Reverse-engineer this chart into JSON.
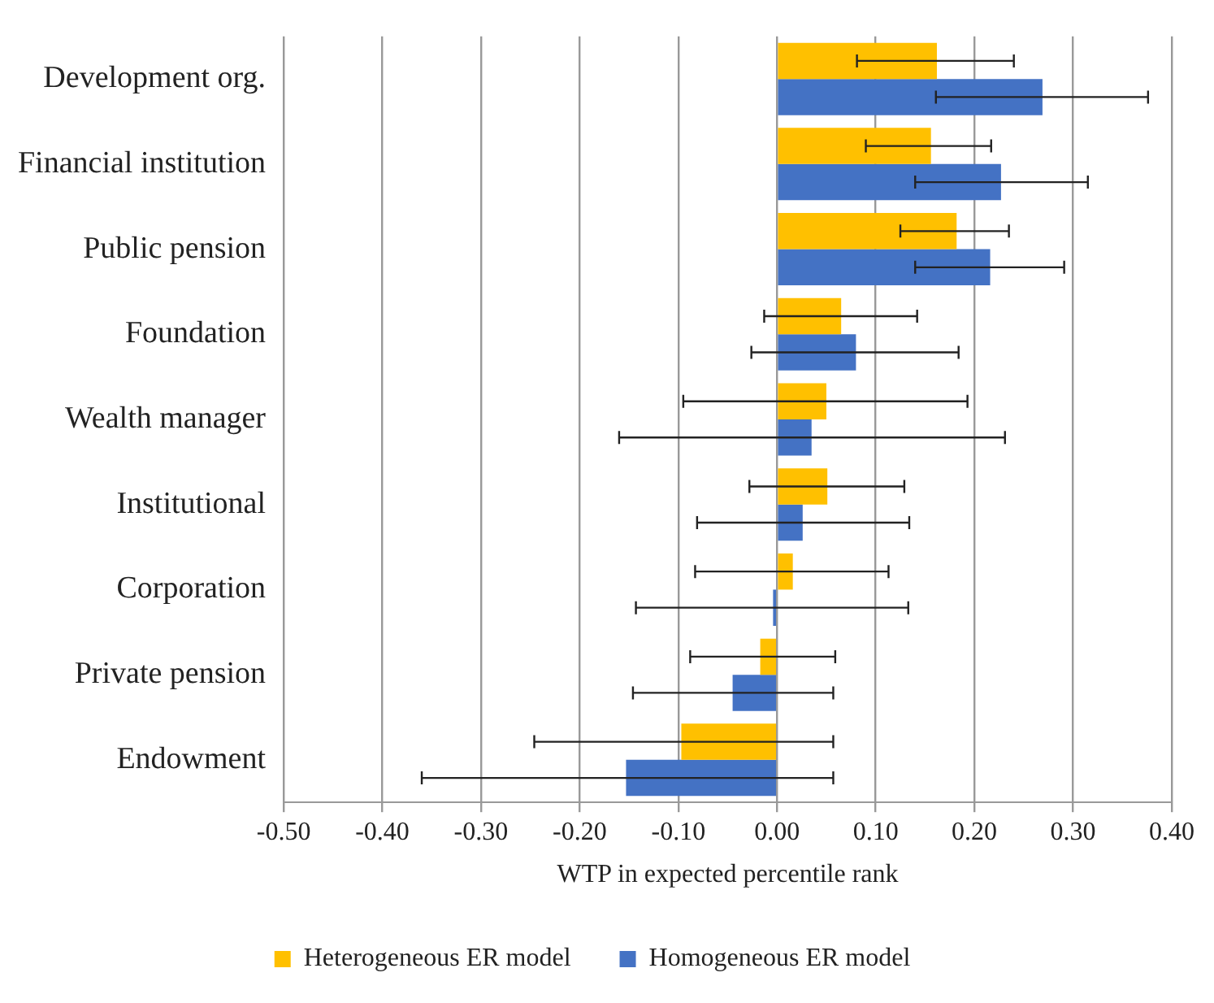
{
  "chart_data": {
    "type": "bar",
    "orientation": "horizontal",
    "xlabel": "WTP in expected percentile rank",
    "categories": [
      "Development org.",
      "Financial institution",
      "Public pension",
      "Foundation",
      "Wealth manager",
      "Institutional",
      "Corporation",
      "Private pension",
      "Endowment"
    ],
    "series": [
      {
        "name": "Heterogeneous ER model",
        "color": "#ffc000",
        "values": [
          0.162,
          0.156,
          0.182,
          0.065,
          0.05,
          0.051,
          0.016,
          -0.017,
          -0.097
        ],
        "errors": [
          [
            0.081,
            0.24
          ],
          [
            0.09,
            0.217
          ],
          [
            0.125,
            0.235
          ],
          [
            -0.013,
            0.142
          ],
          [
            -0.095,
            0.193
          ],
          [
            -0.028,
            0.129
          ],
          [
            -0.083,
            0.113
          ],
          [
            -0.088,
            0.059
          ],
          [
            -0.246,
            0.057
          ]
        ]
      },
      {
        "name": "Homogeneous ER model",
        "color": "#4472c4",
        "values": [
          0.269,
          0.227,
          0.216,
          0.08,
          0.035,
          0.026,
          -0.004,
          -0.045,
          -0.153
        ],
        "errors": [
          [
            0.161,
            0.376
          ],
          [
            0.14,
            0.315
          ],
          [
            0.14,
            0.291
          ],
          [
            -0.026,
            0.184
          ],
          [
            -0.16,
            0.231
          ],
          [
            -0.081,
            0.134
          ],
          [
            -0.143,
            0.133
          ],
          [
            -0.146,
            0.057
          ],
          [
            -0.36,
            0.057
          ]
        ]
      }
    ],
    "xlim": [
      -0.5,
      0.4
    ],
    "xticks": [
      {
        "value": -0.5,
        "label": "-0.50"
      },
      {
        "value": -0.4,
        "label": "-0.40"
      },
      {
        "value": -0.3,
        "label": "-0.30"
      },
      {
        "value": -0.2,
        "label": "-0.20"
      },
      {
        "value": -0.1,
        "label": "-0.10"
      },
      {
        "value": 0,
        "label": "0.00"
      },
      {
        "value": 0.1,
        "label": "0.10"
      },
      {
        "value": 0.2,
        "label": "0.20"
      },
      {
        "value": 0.3,
        "label": "0.30"
      },
      {
        "value": 0.4,
        "label": "0.40"
      }
    ],
    "grid": "x",
    "legend": "bottom"
  }
}
